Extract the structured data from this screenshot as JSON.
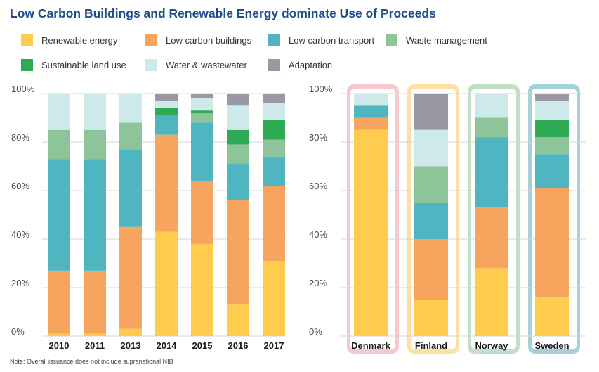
{
  "title": "Low Carbon Buildings and Renewable Energy dominate Use of Proceeds",
  "note": "Note: Overall issuance does not include supranational NIB",
  "legend": [
    {
      "name": "Renewable energy",
      "color": "#ffcc4d"
    },
    {
      "name": "Low carbon buildings",
      "color": "#f7a55e"
    },
    {
      "name": "Low carbon transport",
      "color": "#4fb5c0"
    },
    {
      "name": "Waste management",
      "color": "#8ec49a"
    },
    {
      "name": "Sustainable land use",
      "color": "#2eaa55"
    },
    {
      "name": "Water & wastewater",
      "color": "#cde9e9"
    },
    {
      "name": "Adaptation",
      "color": "#9a98a5"
    }
  ],
  "chart_data": [
    {
      "type": "bar",
      "stacked": true,
      "ylim": [
        0,
        100
      ],
      "yticks": [
        "0%",
        "20%",
        "40%",
        "60%",
        "80%",
        "100%"
      ],
      "categories": [
        "2010",
        "2011",
        "2013",
        "2014",
        "2015",
        "2016",
        "2017"
      ],
      "series": [
        {
          "name": "Renewable energy",
          "values": [
            1,
            1,
            3,
            43,
            38,
            13,
            31
          ]
        },
        {
          "name": "Low carbon buildings",
          "values": [
            26,
            26,
            42,
            40,
            26,
            43,
            31
          ]
        },
        {
          "name": "Low carbon transport",
          "values": [
            46,
            46,
            32,
            8,
            24,
            15,
            12
          ]
        },
        {
          "name": "Waste management",
          "values": [
            12,
            12,
            11,
            0,
            4,
            8,
            7
          ]
        },
        {
          "name": "Sustainable land use",
          "values": [
            0,
            0,
            0,
            3,
            1,
            6,
            8
          ]
        },
        {
          "name": "Water & wastewater",
          "values": [
            15,
            15,
            12,
            3,
            5,
            10,
            7
          ]
        },
        {
          "name": "Adaptation",
          "values": [
            0,
            0,
            0,
            3,
            2,
            5,
            4
          ]
        }
      ]
    },
    {
      "type": "bar",
      "stacked": true,
      "ylim": [
        0,
        100
      ],
      "yticks": [
        "0%",
        "20%",
        "40%",
        "60%",
        "80%",
        "100%"
      ],
      "categories": [
        "Denmark",
        "Finland",
        "Norway",
        "Sweden"
      ],
      "category_frame_colors": [
        "#f7c9cf",
        "#fde1a4",
        "#c2dfc5",
        "#a3d3d8"
      ],
      "series": [
        {
          "name": "Renewable energy",
          "values": [
            85,
            15,
            28,
            16
          ]
        },
        {
          "name": "Low carbon buildings",
          "values": [
            5,
            25,
            25,
            45
          ]
        },
        {
          "name": "Low carbon transport",
          "values": [
            5,
            15,
            29,
            14
          ]
        },
        {
          "name": "Waste management",
          "values": [
            0,
            15,
            8,
            7
          ]
        },
        {
          "name": "Sustainable land use",
          "values": [
            0,
            0,
            0,
            7
          ]
        },
        {
          "name": "Water & wastewater",
          "values": [
            5,
            15,
            10,
            8
          ]
        },
        {
          "name": "Adaptation",
          "values": [
            0,
            15,
            0,
            3
          ]
        }
      ]
    }
  ]
}
